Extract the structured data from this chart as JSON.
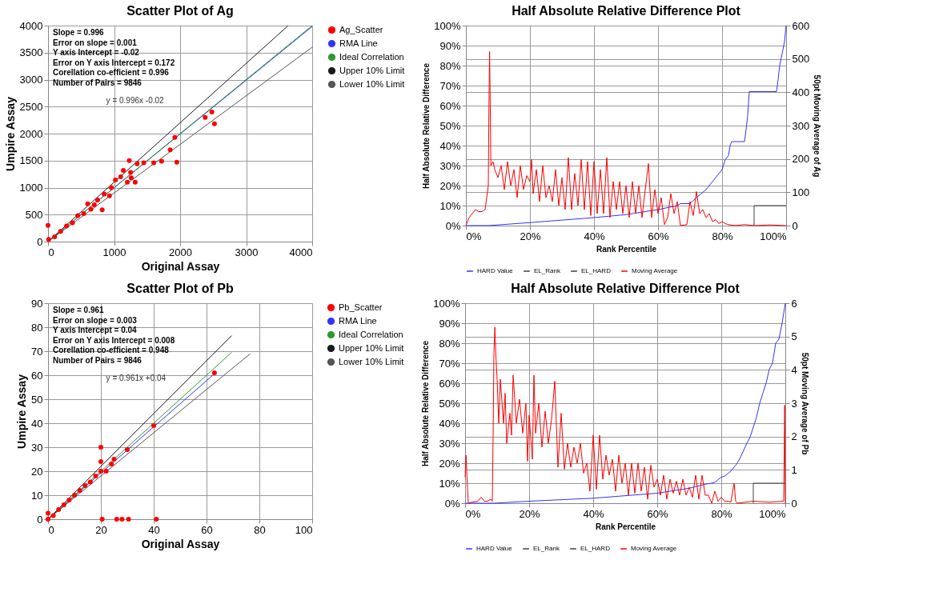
{
  "chart_data": [
    {
      "type": "scatter",
      "title": "Scatter Plot of Ag",
      "xlabel": "Original Assay",
      "ylabel": "Umpire Assay",
      "xlim": [
        0,
        4000
      ],
      "xticks": [
        0,
        1000,
        2000,
        3000,
        4000
      ],
      "ylim": [
        0,
        4000
      ],
      "yticks": [
        0,
        500,
        1000,
        1500,
        2000,
        2500,
        3000,
        3500,
        4000
      ],
      "grid": true,
      "legend": "right",
      "annotations": [
        "Slope = 0.996",
        "Error on slope = 0.001",
        "Y axis Intercept = -0.02",
        "Error on Y axis Intercept = 0.172",
        "Corellation co-efficient = 0.996",
        "Number of Pairs = 9846",
        "y = 0.996x -0.02"
      ],
      "series": [
        {
          "name": "Ag_Scatter",
          "type": "scatter",
          "color": "#ff0000",
          "x": [
            0,
            10,
            100,
            190,
            280,
            370,
            450,
            540,
            600,
            650,
            700,
            750,
            820,
            850,
            930,
            960,
            1020,
            1100,
            1140,
            1200,
            1230,
            1250,
            1260,
            1320,
            1350,
            1450,
            1600,
            1720,
            1850,
            1920,
            1950,
            2380,
            2480,
            2520
          ],
          "values": [
            300,
            40,
            90,
            190,
            290,
            350,
            480,
            520,
            700,
            600,
            680,
            770,
            590,
            880,
            850,
            1000,
            1140,
            1200,
            1320,
            1100,
            1500,
            1280,
            1180,
            1100,
            1440,
            1460,
            1460,
            1490,
            1700,
            1930,
            1470,
            2300,
            2400,
            2180
          ]
        },
        {
          "name": "RMA Line",
          "type": "line",
          "color": "#3333ff",
          "x": [
            0,
            4000
          ],
          "values": [
            0,
            3984
          ]
        },
        {
          "name": "Ideal Correlation",
          "type": "line",
          "color": "#2e9a2e",
          "x": [
            0,
            4000
          ],
          "values": [
            0,
            4000
          ]
        },
        {
          "name": "Upper 10% Limit",
          "type": "line",
          "color": "#1a1a1a",
          "x": [
            0,
            3636
          ],
          "values": [
            0,
            4000
          ]
        },
        {
          "name": "Lower 10% Limit",
          "type": "line",
          "color": "#555555",
          "x": [
            0,
            4000
          ],
          "values": [
            0,
            3600
          ]
        }
      ]
    },
    {
      "type": "line",
      "title": "Half Absolute Relative Difference Plot",
      "xlabel": "Rank Percentile",
      "ylabel": "Half Absolute Relative Difference",
      "y2label": "50pt Moving Average of Ag",
      "xlim": [
        0,
        100
      ],
      "xticks": [
        {
          "value": 0,
          "label": "0%"
        },
        {
          "value": 20,
          "label": "20%"
        },
        {
          "value": 40,
          "label": "40%"
        },
        {
          "value": 60,
          "label": "60%"
        },
        {
          "value": 80,
          "label": "80%"
        },
        {
          "value": 100,
          "label": "100%"
        }
      ],
      "ylim": [
        0,
        100
      ],
      "yticks": [
        {
          "value": 0,
          "label": "0%"
        },
        {
          "value": 10,
          "label": "10%"
        },
        {
          "value": 20,
          "label": "20%"
        },
        {
          "value": 30,
          "label": "30%"
        },
        {
          "value": 40,
          "label": "40%"
        },
        {
          "value": 50,
          "label": "50%"
        },
        {
          "value": 60,
          "label": "60%"
        },
        {
          "value": 70,
          "label": "70%"
        },
        {
          "value": 80,
          "label": "80%"
        },
        {
          "value": 90,
          "label": "90%"
        },
        {
          "value": 100,
          "label": "100%"
        }
      ],
      "y2lim": [
        0,
        600
      ],
      "y2ticks": [
        0,
        100,
        200,
        300,
        400,
        500,
        600
      ],
      "grid": true,
      "legend": "bottom",
      "series": [
        {
          "name": "HARD Value",
          "color": "#3333ff",
          "x": [
            0,
            7,
            20,
            40,
            50,
            60,
            63,
            66,
            67,
            70,
            72,
            75,
            76,
            78,
            79,
            80,
            81,
            82,
            82.5,
            83,
            87,
            87.5,
            88,
            88.5,
            97,
            97.5,
            98,
            99,
            99.5,
            100
          ],
          "values": [
            0,
            0,
            1.5,
            4,
            5.5,
            8,
            9,
            10,
            11,
            11,
            14,
            18,
            20,
            24,
            26,
            28,
            33,
            35,
            40,
            42,
            42,
            48,
            55,
            67,
            67,
            73,
            80,
            88,
            92,
            100
          ]
        },
        {
          "name": "EL_Rank",
          "color": "#404040",
          "x": [
            90,
            90
          ],
          "values": [
            0,
            10
          ]
        },
        {
          "name": "EL_HARD",
          "color": "#404040",
          "x": [
            90,
            100
          ],
          "values": [
            10,
            10
          ]
        },
        {
          "name": "Moving Average",
          "color": "#ff0000",
          "axis": "y2",
          "x": [
            0,
            0.5,
            1,
            2,
            3,
            4,
            5,
            6,
            6.5,
            7,
            7.2,
            7.4,
            7.6,
            7.8,
            8.5,
            9,
            10,
            11,
            12,
            13,
            14,
            15,
            16,
            17,
            18,
            19,
            20,
            20.5,
            21,
            22,
            23,
            24,
            25,
            26,
            27,
            28,
            29,
            30,
            31,
            32,
            33,
            34,
            35,
            36,
            37,
            38,
            39,
            40,
            41,
            42,
            43,
            44,
            45,
            46,
            47,
            48,
            49,
            50,
            51,
            52,
            53,
            54,
            55,
            56,
            57,
            58,
            59,
            60,
            61,
            62,
            63,
            64,
            65,
            66,
            67,
            69,
            70,
            71,
            72,
            73,
            74,
            75,
            76,
            77,
            78,
            79,
            80,
            81,
            82,
            84,
            87,
            90,
            95,
            100
          ],
          "values": [
            0,
            12,
            24,
            36,
            48,
            42,
            42,
            48,
            84,
            120,
            360,
            522,
            360,
            180,
            192,
            168,
            144,
            180,
            108,
            192,
            120,
            168,
            84,
            180,
            108,
            150,
            132,
            198,
            96,
            168,
            72,
            180,
            84,
            120,
            72,
            168,
            60,
            144,
            48,
            204,
            48,
            156,
            60,
            198,
            48,
            192,
            30,
            192,
            36,
            168,
            36,
            204,
            24,
            132,
            48,
            132,
            36,
            120,
            24,
            132,
            36,
            120,
            24,
            108,
            186,
            24,
            108,
            36,
            84,
            3,
            24,
            96,
            36,
            72,
            0,
            3,
            72,
            30,
            102,
            36,
            48,
            24,
            36,
            12,
            18,
            6,
            12,
            6,
            3,
            0,
            3,
            0,
            2,
            0
          ]
        }
      ]
    },
    {
      "type": "scatter",
      "title": "Scatter Plot of Pb",
      "xlabel": "Original Assay",
      "ylabel": "Umpire Assay",
      "xlim": [
        0,
        100
      ],
      "xticks": [
        0,
        20,
        40,
        60,
        80,
        100
      ],
      "ylim": [
        0,
        90
      ],
      "yticks": [
        0,
        10,
        20,
        30,
        40,
        50,
        60,
        70,
        80,
        90
      ],
      "grid": true,
      "legend": "right",
      "annotations": [
        "Slope = 0.961",
        "Error on slope = 0.003",
        "Y axis Intercept = 0.04",
        "Error on Y axis Intercept = 0.008",
        "Corellation  co-efficient = 0.948",
        "Number of Pairs = 9846",
        "y = 0.961x +0.04"
      ],
      "series": [
        {
          "name": "Pb_Scatter",
          "type": "scatter",
          "color": "#ff0000",
          "x": [
            0,
            0,
            2,
            4,
            6,
            8,
            10,
            12,
            14,
            16,
            18,
            20,
            20,
            20,
            20.5,
            22,
            24,
            25,
            26,
            28,
            30,
            30.5,
            40,
            41,
            63
          ],
          "values": [
            0,
            2.5,
            1.5,
            4,
            6,
            8,
            10,
            12,
            14,
            15.5,
            18,
            20,
            24,
            30,
            0,
            20,
            23,
            25,
            0,
            0,
            29,
            0,
            39,
            0,
            61
          ]
        },
        {
          "name": "RMA Line",
          "type": "line",
          "color": "#3333ff",
          "x": [
            0,
            63
          ],
          "values": [
            0,
            60.6
          ]
        },
        {
          "name": "Ideal Correlation",
          "type": "line",
          "color": "#2e9a2e",
          "x": [
            0,
            69.5
          ],
          "values": [
            0,
            69.5
          ]
        },
        {
          "name": "Upper 10% Limit",
          "type": "line",
          "color": "#1a1a1a",
          "x": [
            0,
            69.5
          ],
          "values": [
            0,
            76.5
          ]
        },
        {
          "name": "Lower 10% Limit",
          "type": "line",
          "color": "#555555",
          "x": [
            0,
            76.5
          ],
          "values": [
            0,
            68.9
          ]
        }
      ]
    },
    {
      "type": "line",
      "title": "Half Absolute Relative Difference Plot",
      "xlabel": "Rank Percentile",
      "ylabel": "Half Absolute Relative Difference",
      "y2label": "50pt Moving Average of Pb",
      "xlim": [
        0,
        100
      ],
      "xticks": [
        {
          "value": 0,
          "label": "0%"
        },
        {
          "value": 20,
          "label": "20%"
        },
        {
          "value": 40,
          "label": "40%"
        },
        {
          "value": 60,
          "label": "60%"
        },
        {
          "value": 80,
          "label": "80%"
        },
        {
          "value": 100,
          "label": "100%"
        }
      ],
      "ylim": [
        0,
        100
      ],
      "yticks": [
        {
          "value": 0,
          "label": "0%"
        },
        {
          "value": 10,
          "label": "10%"
        },
        {
          "value": 20,
          "label": "20%"
        },
        {
          "value": 30,
          "label": "30%"
        },
        {
          "value": 40,
          "label": "40%"
        },
        {
          "value": 50,
          "label": "50%"
        },
        {
          "value": 60,
          "label": "60%"
        },
        {
          "value": 70,
          "label": "70%"
        },
        {
          "value": 80,
          "label": "80%"
        },
        {
          "value": 90,
          "label": "90%"
        },
        {
          "value": 100,
          "label": "100%"
        }
      ],
      "y2lim": [
        0,
        6
      ],
      "y2ticks": [
        0,
        1,
        2,
        3,
        4,
        5,
        6
      ],
      "grid": true,
      "legend": "bottom",
      "series": [
        {
          "name": "HARD Value",
          "color": "#3333ff",
          "x": [
            0,
            9,
            20,
            40,
            60,
            70,
            75,
            77,
            78,
            80,
            81,
            83,
            84,
            85,
            86,
            88,
            89,
            90,
            91,
            92,
            93,
            94,
            95,
            96,
            97,
            98,
            99,
            100
          ],
          "values": [
            0,
            0,
            1,
            2.5,
            5,
            7.5,
            9.5,
            10,
            10.5,
            13,
            13.5,
            16,
            18,
            20,
            23,
            30,
            33,
            38,
            43,
            50,
            55,
            60,
            67,
            70,
            80,
            82,
            90,
            100
          ]
        },
        {
          "name": "EL_Rank",
          "color": "#404040",
          "x": [
            90,
            90
          ],
          "values": [
            0,
            10
          ]
        },
        {
          "name": "EL_HARD",
          "color": "#404040",
          "x": [
            90,
            100
          ],
          "values": [
            10,
            10
          ]
        },
        {
          "name": "Moving Average",
          "color": "#ff0000",
          "axis": "y2",
          "x": [
            0,
            0.3,
            0.6,
            1,
            2,
            4,
            5,
            6,
            7,
            8,
            8.5,
            8.8,
            9,
            9.3,
            9.6,
            10,
            10.5,
            11,
            12,
            12.5,
            13,
            14,
            14.5,
            15,
            16,
            17,
            18,
            19,
            19.5,
            20,
            21,
            21.5,
            22,
            23,
            24,
            25,
            26,
            27,
            28,
            29,
            30,
            31,
            32,
            33,
            34,
            35,
            36,
            37,
            38,
            39,
            40,
            41,
            42,
            43,
            44,
            45,
            46,
            47,
            48,
            49,
            50,
            51,
            52,
            53,
            54,
            55,
            56,
            57,
            58,
            59,
            60,
            61,
            62,
            63,
            64,
            65,
            66,
            67,
            68,
            69,
            70,
            71,
            72,
            73,
            74,
            75,
            76,
            77,
            78,
            79,
            80,
            81,
            82,
            83,
            84,
            84.5,
            85,
            90,
            95,
            99.5,
            99.8,
            100
          ],
          "values": [
            0.78,
            1.44,
            0.72,
            0,
            0.03,
            0.06,
            0.18,
            0.06,
            0.06,
            0.12,
            0.06,
            2.4,
            4.5,
            5.28,
            4.44,
            3.72,
            2.4,
            3.72,
            2.4,
            3.3,
            1.8,
            2.7,
            2.04,
            3.84,
            2.4,
            3.12,
            2.1,
            3,
            1.26,
            2.64,
            1.32,
            3.84,
            2.1,
            3,
            1.68,
            2.76,
            1.8,
            2.52,
            3.66,
            1.08,
            2.7,
            1.02,
            1.8,
            1.08,
            1.68,
            1.2,
            1.8,
            0.9,
            1.2,
            0.36,
            2.04,
            0.42,
            2.04,
            0.72,
            1.44,
            0.84,
            1.32,
            0.36,
            1.44,
            0.6,
            1.2,
            0.24,
            1.2,
            0.3,
            1.2,
            0.36,
            1.08,
            0.12,
            1.14,
            0.48,
            0.72,
            0.24,
            0.84,
            0.12,
            0.72,
            0.3,
            0.66,
            0.24,
            0.72,
            0.24,
            0.48,
            0.18,
            0.84,
            0.12,
            0.84,
            0.24,
            0.24,
            0,
            0.36,
            0.06,
            0.18,
            0.06,
            0.06,
            0.03,
            0.6,
            0.06,
            0,
            0.06,
            0.03,
            0.06,
            2.94,
            0
          ]
        }
      ]
    }
  ]
}
